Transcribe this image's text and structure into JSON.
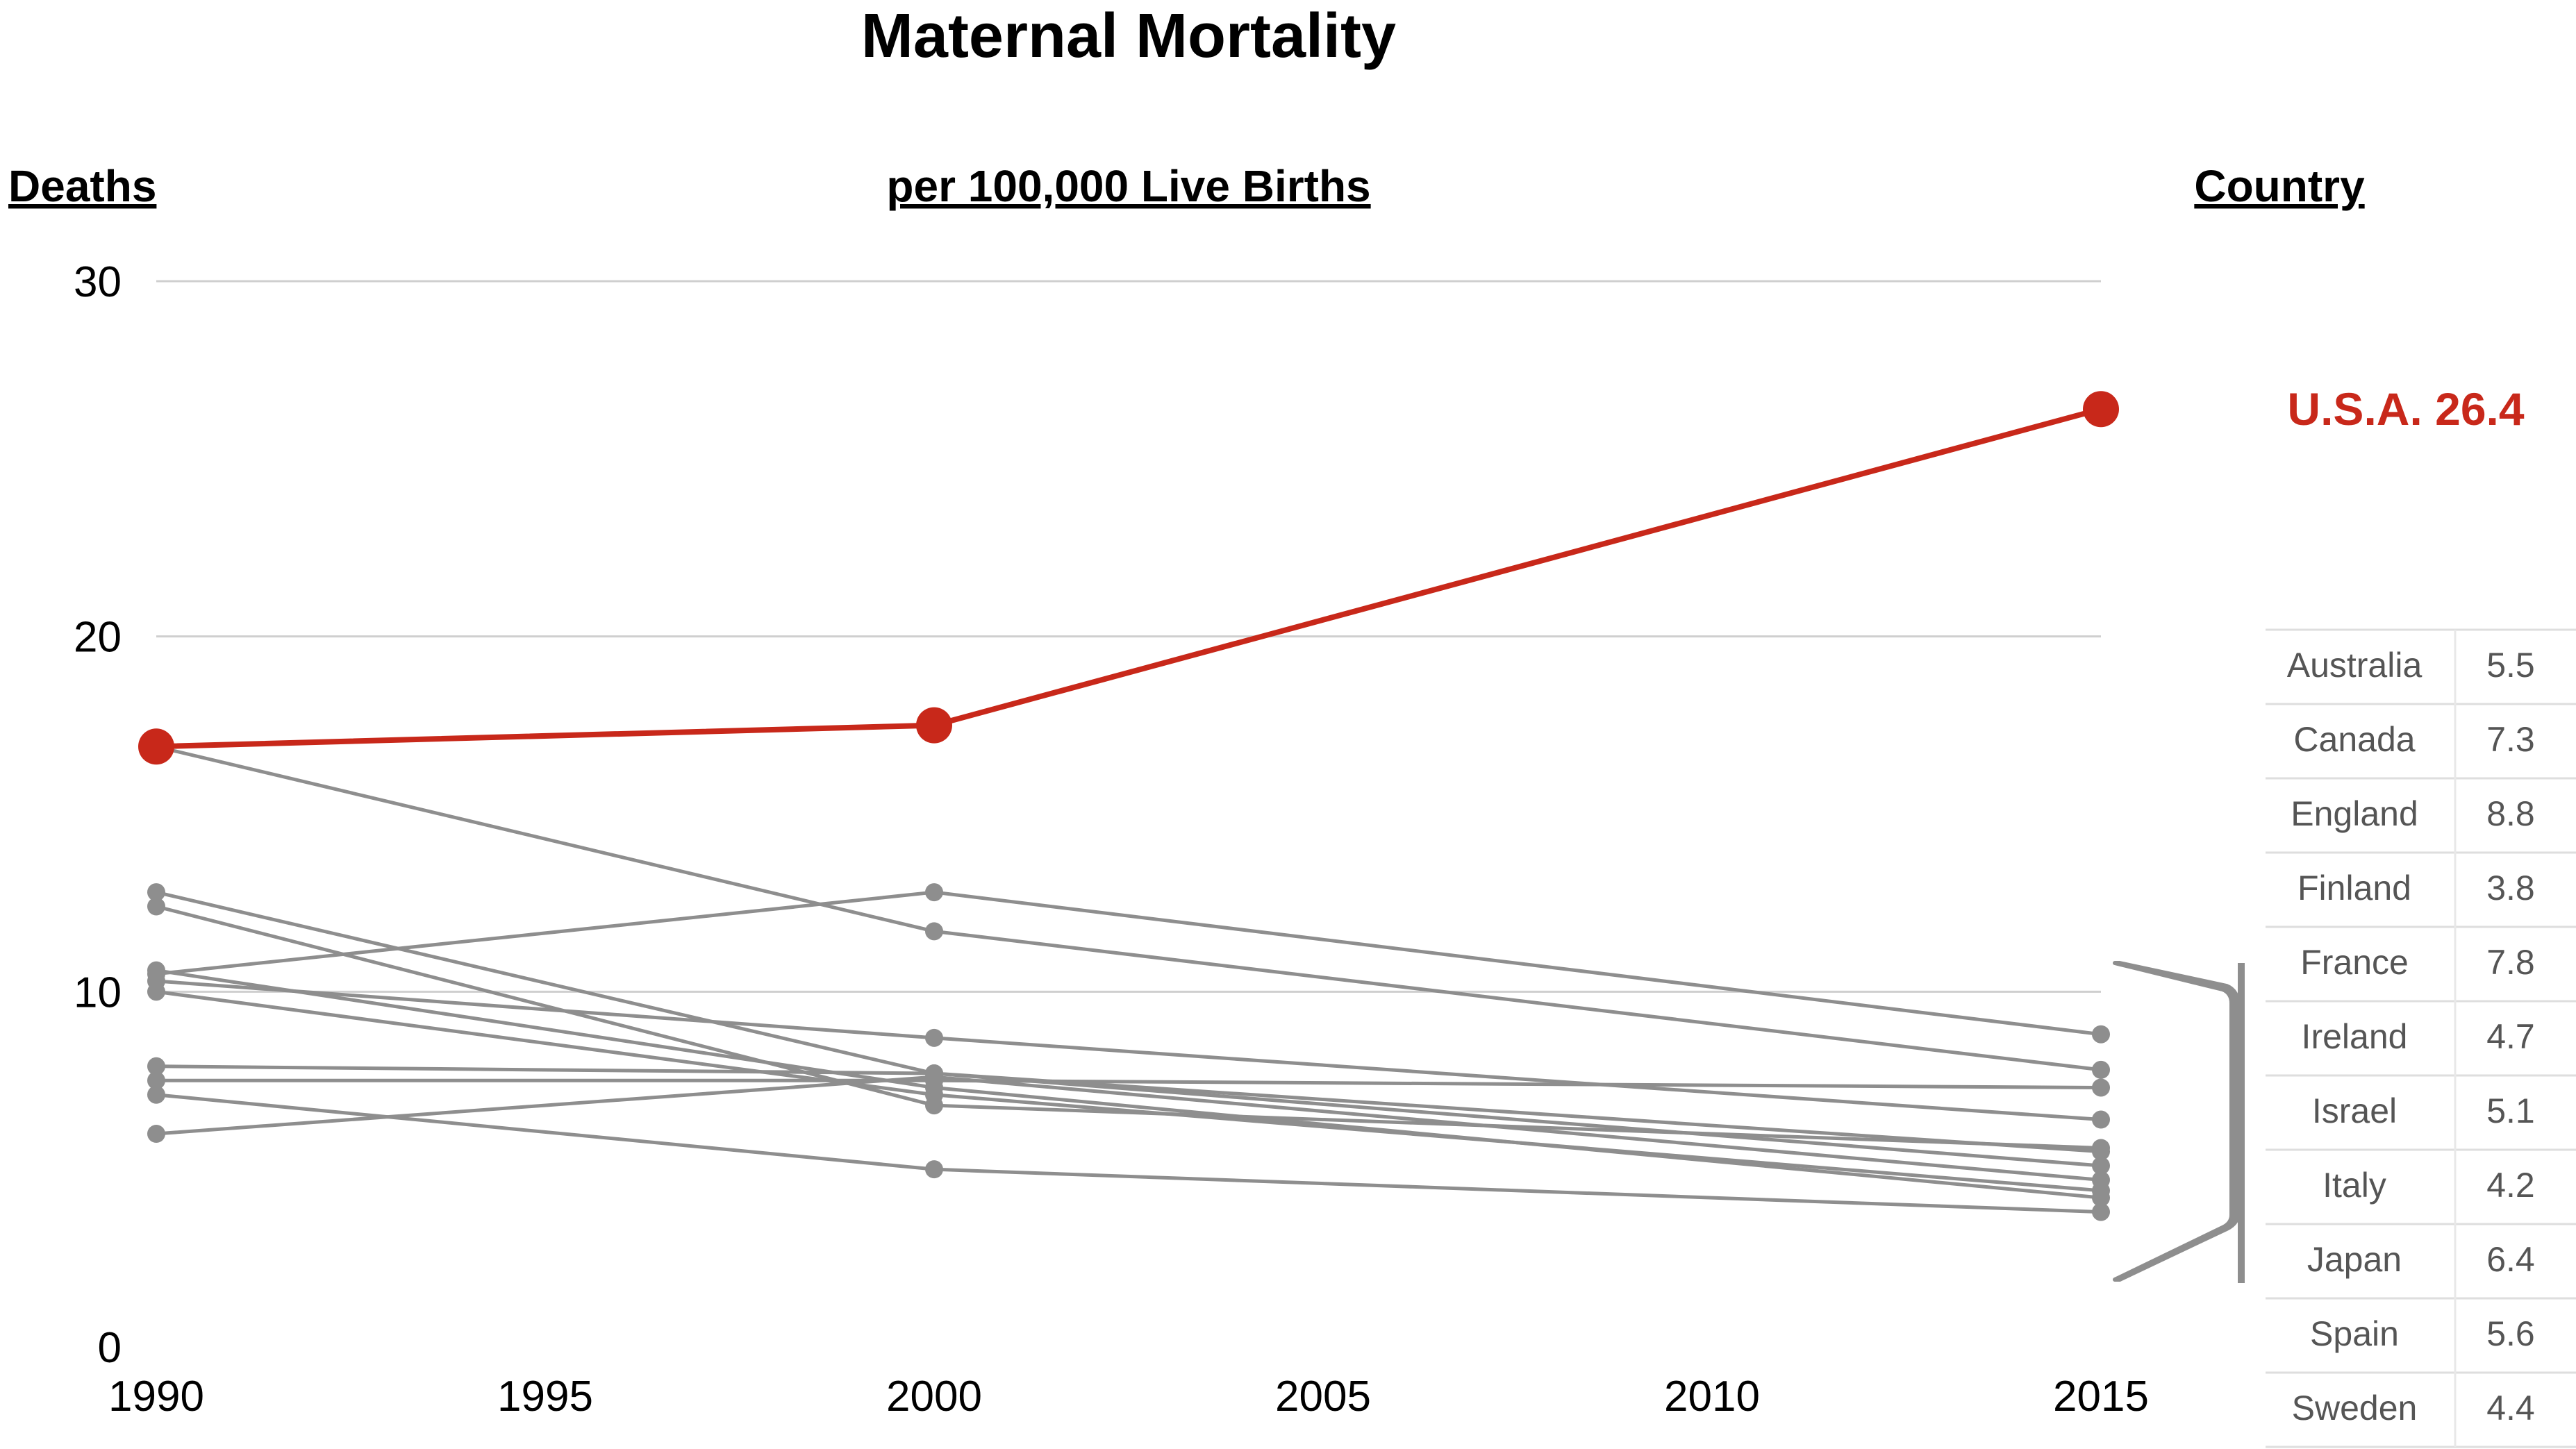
{
  "chart_data": {
    "type": "line",
    "title": "Maternal Mortality",
    "ylabel": "Deaths",
    "subtitle": "per 100,000 Live Births",
    "legend_header": "Country",
    "x_ticks": [
      1990,
      1995,
      2000,
      2005,
      2010,
      2015
    ],
    "y_ticks": [
      0,
      10,
      20,
      30
    ],
    "xlim": [
      1990,
      2015
    ],
    "ylim": [
      0,
      30
    ],
    "grid": true,
    "highlight": {
      "name": "U.S.A.",
      "label": "U.S.A. 26.4",
      "color": "#c8281a",
      "x": [
        1990,
        2000,
        2015
      ],
      "values": [
        16.9,
        17.5,
        26.4
      ]
    },
    "series_color": "#8e8e8e",
    "series": [
      {
        "name": "Australia",
        "x": [
          1990,
          2000,
          2015
        ],
        "values": [
          7.9,
          7.7,
          5.5
        ]
      },
      {
        "name": "Canada",
        "x": [
          1990,
          2000,
          2015
        ],
        "values": [
          7.5,
          7.5,
          7.3
        ]
      },
      {
        "name": "England",
        "x": [
          1990,
          2000,
          2015
        ],
        "values": [
          10.5,
          12.8,
          8.8
        ]
      },
      {
        "name": "Finland",
        "x": [
          1990,
          2000,
          2015
        ],
        "values": [
          7.1,
          5.0,
          3.8
        ]
      },
      {
        "name": "France",
        "x": [
          1990,
          2000,
          2015
        ],
        "values": [
          16.9,
          11.7,
          7.8
        ]
      },
      {
        "name": "Ireland",
        "x": [
          1990,
          2000,
          2015
        ],
        "values": [
          6.0,
          7.6,
          4.7
        ]
      },
      {
        "name": "Israel",
        "x": [
          1990,
          2000,
          2015
        ],
        "values": [
          12.8,
          7.7,
          5.1
        ]
      },
      {
        "name": "Italy",
        "x": [
          1990,
          2000,
          2015
        ],
        "values": [
          10.6,
          7.3,
          4.2
        ]
      },
      {
        "name": "Japan",
        "x": [
          1990,
          2000,
          2015
        ],
        "values": [
          10.3,
          8.7,
          6.4
        ]
      },
      {
        "name": "Spain",
        "x": [
          1990,
          2000,
          2015
        ],
        "values": [
          12.4,
          6.8,
          5.6
        ]
      },
      {
        "name": "Sweden",
        "x": [
          1990,
          2000,
          2015
        ],
        "values": [
          10.0,
          7.1,
          4.4
        ]
      }
    ],
    "table": [
      {
        "country": "Australia",
        "value": "5.5"
      },
      {
        "country": "Canada",
        "value": "7.3"
      },
      {
        "country": "England",
        "value": "8.8"
      },
      {
        "country": "Finland",
        "value": "3.8"
      },
      {
        "country": "France",
        "value": "7.8"
      },
      {
        "country": "Ireland",
        "value": "4.7"
      },
      {
        "country": "Israel",
        "value": "5.1"
      },
      {
        "country": "Italy",
        "value": "4.2"
      },
      {
        "country": "Japan",
        "value": "6.4"
      },
      {
        "country": "Spain",
        "value": "5.6"
      },
      {
        "country": "Sweden",
        "value": "4.4"
      }
    ]
  }
}
